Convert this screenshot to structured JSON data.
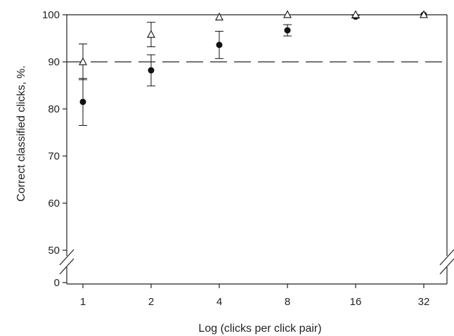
{
  "chart_data": {
    "type": "scatter",
    "title": "",
    "xlabel": "Log (clicks per click pair)",
    "ylabel": "Correct classified clicks, %.",
    "x_scale": "log2",
    "x_ticks": [
      1,
      2,
      4,
      8,
      16,
      32
    ],
    "x_tick_labels": [
      "1",
      "2",
      "4",
      "8",
      "16",
      "32"
    ],
    "y_ticks_upper": [
      50,
      60,
      70,
      80,
      90,
      100
    ],
    "y_tick_labels_upper": [
      "50",
      "60",
      "70",
      "80",
      "90",
      "100"
    ],
    "y_ticks_lower": [
      0
    ],
    "y_tick_labels_lower": [
      "0"
    ],
    "ylim": [
      0,
      100
    ],
    "y_axis_break": [
      0,
      50
    ],
    "reference_line": {
      "y": 90,
      "style": "dashed"
    },
    "grid": false,
    "series": [
      {
        "marker": "filled-circle",
        "color": "#111111",
        "x": [
          1,
          2,
          4,
          8,
          16,
          32
        ],
        "y": [
          81.5,
          88.2,
          93.6,
          96.7,
          99.6,
          100
        ],
        "err": [
          5.0,
          3.3,
          2.9,
          1.2,
          0.3,
          0.0
        ]
      },
      {
        "marker": "open-triangle",
        "color": "#111111",
        "x": [
          1,
          2,
          4,
          8,
          16,
          32
        ],
        "y": [
          90.0,
          95.8,
          99.5,
          100,
          100,
          100
        ],
        "err": [
          3.8,
          2.6,
          0.0,
          0.0,
          0.0,
          0.0
        ]
      }
    ]
  }
}
